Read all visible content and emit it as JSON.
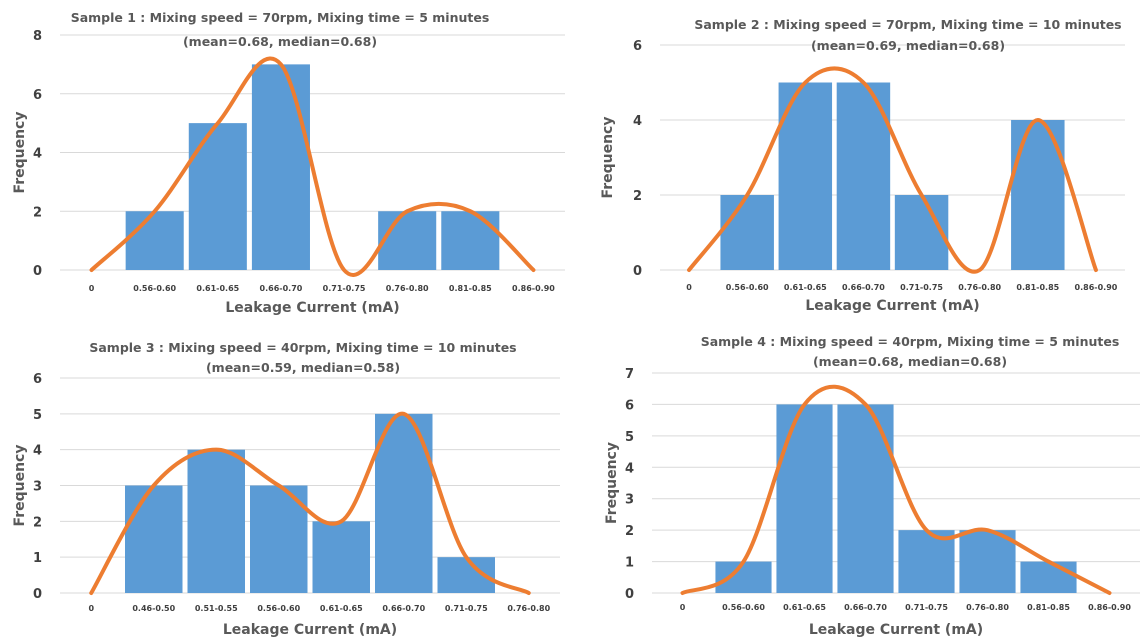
{
  "colors": {
    "bar": "#5b9bd5",
    "curve": "#ed7d31",
    "grid": "#d9d9d9",
    "text": "#595959"
  },
  "chart_data": [
    {
      "type": "bar",
      "title": "Sample 1 : Mixing speed = 70rpm, Mixing time = 5 minutes",
      "subtitle": "(mean=0.68, median=0.68)",
      "xlabel": "Leakage Current (mA)",
      "ylabel": "Frequency",
      "categories": [
        "0",
        "0.56-0.60",
        "0.61-0.65",
        "0.66-0.70",
        "0.71-0.75",
        "0.76-0.80",
        "0.81-0.85",
        "0.86-0.90"
      ],
      "values": [
        null,
        2,
        5,
        7,
        null,
        2,
        2,
        null
      ],
      "curve": [
        0,
        2,
        5,
        7,
        0,
        2,
        2,
        0
      ],
      "ylim": [
        0,
        8
      ],
      "yticks": [
        0,
        2,
        4,
        6,
        8
      ],
      "grid": true
    },
    {
      "type": "bar",
      "title": "Sample 2 : Mixing speed = 70rpm, Mixing time = 10 minutes",
      "subtitle": "(mean=0.69, median=0.68)",
      "xlabel": "Leakage Current (mA)",
      "ylabel": "Frequency",
      "categories": [
        "0",
        "0.56-0.60",
        "0.61-0.65",
        "0.66-0.70",
        "0.71-0.75",
        "0.76-0.80",
        "0.81-0.85",
        "0.86-0.90"
      ],
      "values": [
        null,
        2,
        5,
        5,
        2,
        null,
        4,
        null
      ],
      "curve": [
        0,
        2,
        5,
        5,
        2,
        0,
        4,
        0
      ],
      "ylim": [
        0,
        6
      ],
      "yticks": [
        0,
        2,
        4,
        6
      ],
      "grid": true
    },
    {
      "type": "bar",
      "title": "Sample 3 : Mixing speed = 40rpm, Mixing time = 10 minutes",
      "subtitle": "(mean=0.59, median=0.58)",
      "xlabel": "Leakage Current (mA)",
      "ylabel": "Frequency",
      "categories": [
        "0",
        "0.46-0.50",
        "0.51-0.55",
        "0.56-0.60",
        "0.61-0.65",
        "0.66-0.70",
        "0.71-0.75",
        "0.76-0.80"
      ],
      "values": [
        null,
        3,
        4,
        3,
        2,
        5,
        1,
        null
      ],
      "curve": [
        0,
        3,
        4,
        3,
        2,
        5,
        1,
        0
      ],
      "ylim": [
        0,
        6
      ],
      "yticks": [
        0,
        1,
        2,
        3,
        4,
        5,
        6
      ],
      "grid": true
    },
    {
      "type": "bar",
      "title": "Sample 4 : Mixing speed = 40rpm, Mixing time = 5 minutes",
      "subtitle": "(mean=0.68, median=0.68)",
      "xlabel": "Leakage Current (mA)",
      "ylabel": "Frequency",
      "categories": [
        "0",
        "0.56-0.60",
        "0.61-0.65",
        "0.66-0.70",
        "0.71-0.75",
        "0.76-0.80",
        "0.81-0.85",
        "0.86-0.90"
      ],
      "values": [
        null,
        1,
        6,
        6,
        2,
        2,
        1,
        null
      ],
      "curve": [
        0,
        1,
        6,
        6,
        2,
        2,
        1,
        0
      ],
      "ylim": [
        0,
        7
      ],
      "yticks": [
        0,
        1,
        2,
        3,
        4,
        5,
        6,
        7
      ],
      "grid": true
    }
  ]
}
